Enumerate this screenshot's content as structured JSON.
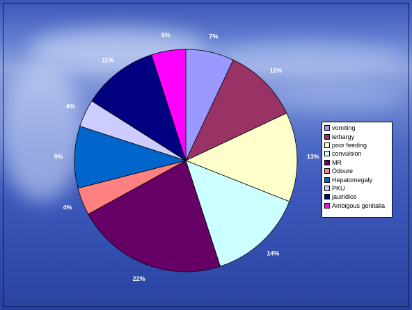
{
  "chart_data": {
    "type": "pie",
    "title": "",
    "categories": [
      "vomiting",
      "lethargy",
      "poor feeding",
      "convulsion",
      "MR",
      "Odoure",
      "Hepatomegaly",
      "PKU",
      "jauindice",
      "Ambigous genitalia"
    ],
    "values": [
      7,
      11,
      13,
      14,
      22,
      4,
      9,
      4,
      11,
      5
    ],
    "labels": [
      "7%",
      "11%",
      "13%",
      "14%",
      "22%",
      "4%",
      "9%",
      "4%",
      "11%",
      "5%"
    ],
    "colors": [
      "#9999ff",
      "#993366",
      "#ffffcc",
      "#ccffff",
      "#660066",
      "#ff8080",
      "#0066cc",
      "#ccccff",
      "#000080",
      "#ff00ff"
    ],
    "start_angle": "12 o'clock",
    "direction": "clockwise",
    "legend_position": "right"
  }
}
